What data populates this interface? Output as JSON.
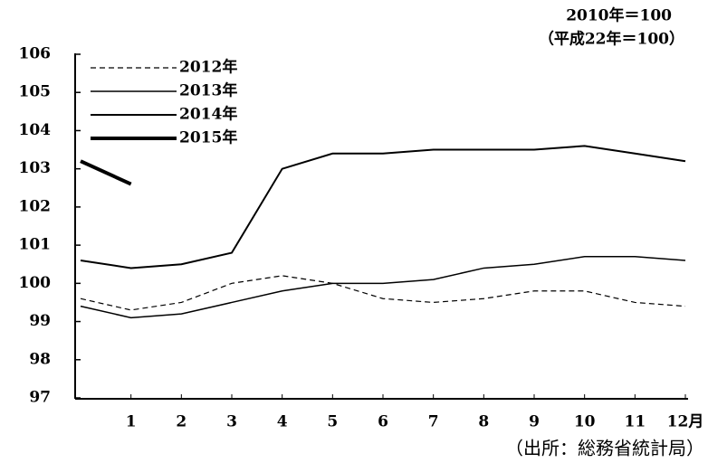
{
  "chart_data": {
    "type": "line",
    "unit_note": [
      "2010年＝100",
      "（平成22年＝100）"
    ],
    "source": "（出所：総務省統計局）",
    "x": [
      0,
      1,
      2,
      3,
      4,
      5,
      6,
      7,
      8,
      9,
      10,
      11,
      12
    ],
    "xlim": [
      0,
      12
    ],
    "xticks": [
      1,
      2,
      3,
      4,
      5,
      6,
      7,
      8,
      9,
      10,
      11,
      {
        "value": 12,
        "label": "12月"
      }
    ],
    "ylim": [
      97,
      106
    ],
    "yticks": [
      97,
      98,
      99,
      100,
      101,
      102,
      103,
      104,
      105,
      106
    ],
    "legend": "upper-left",
    "series": [
      {
        "name": "2012年",
        "color": "#000000",
        "dash": "dashed",
        "width": 1.2,
        "values": [
          99.6,
          99.3,
          99.5,
          100.0,
          100.2,
          100.0,
          99.6,
          99.5,
          99.6,
          99.8,
          99.8,
          99.5,
          99.4
        ]
      },
      {
        "name": "2013年",
        "color": "#000000",
        "dash": "solid",
        "width": 1.5,
        "values": [
          99.4,
          99.1,
          99.2,
          99.5,
          99.8,
          100.0,
          100.0,
          100.1,
          100.4,
          100.5,
          100.7,
          100.7,
          100.6
        ]
      },
      {
        "name": "2014年",
        "color": "#000000",
        "dash": "solid",
        "width": 2,
        "values": [
          100.6,
          100.4,
          100.5,
          100.8,
          103.0,
          103.4,
          103.4,
          103.5,
          103.5,
          103.5,
          103.6,
          103.4,
          103.2
        ]
      },
      {
        "name": "2015年",
        "color": "#000000",
        "dash": "solid",
        "width": 4,
        "values": [
          103.2,
          102.6,
          null,
          null,
          null,
          null,
          null,
          null,
          null,
          null,
          null,
          null,
          null
        ]
      }
    ]
  }
}
